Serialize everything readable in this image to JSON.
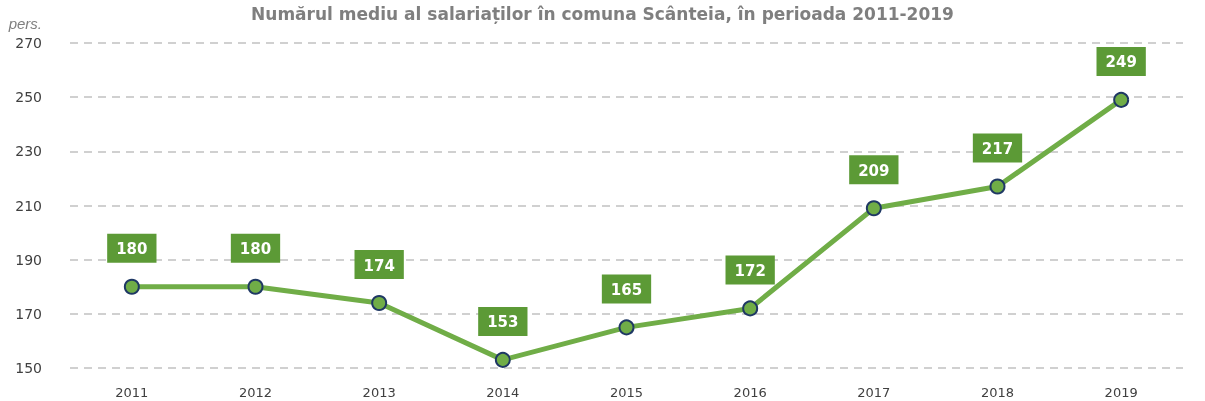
{
  "chart_data": {
    "type": "line",
    "title": "Numărul mediu al salariaților în comuna Scânteia, în perioada 2011-2019",
    "ylabel": "pers.",
    "categories": [
      "2011",
      "2012",
      "2013",
      "2014",
      "2015",
      "2016",
      "2017",
      "2018",
      "2019"
    ],
    "series": [
      {
        "color": "#70ad47",
        "values": [
          180,
          180,
          174,
          153,
          165,
          172,
          209,
          217,
          249
        ]
      }
    ],
    "ylim": [
      150,
      270
    ],
    "yticks": [
      150,
      170,
      190,
      210,
      230,
      250,
      270
    ],
    "grid": "y",
    "marker": "circle",
    "line_style": "solid",
    "data_labels": true
  }
}
